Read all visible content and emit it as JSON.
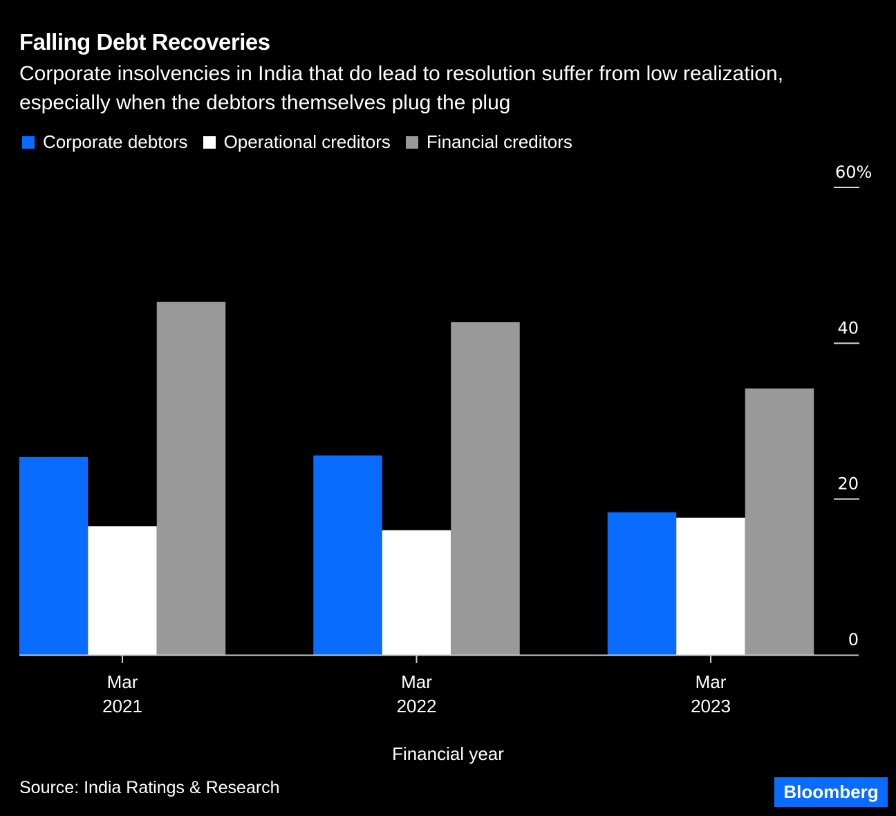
{
  "header": {
    "title": "Falling Debt Recoveries",
    "subtitle": "Corporate insolvencies in India that do lead to resolution suffer from low realization, especially when the debtors themselves plug the plug"
  },
  "footer": {
    "source": "Source: India Ratings & Research",
    "brand": "Bloomberg"
  },
  "chart_data": {
    "type": "bar",
    "title": "Falling Debt Recoveries",
    "subtitle": "Corporate insolvencies in India that do lead to resolution suffer from low realization, especially when the debtors themselves plug the plug",
    "categories": [
      {
        "line1": "Mar",
        "line2": "2021"
      },
      {
        "line1": "Mar",
        "line2": "2022"
      },
      {
        "line1": "Mar",
        "line2": "2023"
      }
    ],
    "series": [
      {
        "name": "Corporate debtors",
        "color": "#0a6cff",
        "values": [
          25.4,
          25.6,
          18.3
        ]
      },
      {
        "name": "Operational creditors",
        "color": "#ffffff",
        "values": [
          16.5,
          16.0,
          17.6
        ]
      },
      {
        "name": "Financial creditors",
        "color": "#999999",
        "values": [
          45.3,
          42.7,
          34.2
        ]
      }
    ],
    "xlabel": "Financial year",
    "ylabel": "",
    "ylim": [
      0,
      60
    ],
    "yticks": [
      {
        "value": 0,
        "label": "0"
      },
      {
        "value": 20,
        "label": "20"
      },
      {
        "value": 40,
        "label": "40"
      },
      {
        "value": 60,
        "label": "60%"
      }
    ],
    "y_axis_side": "right",
    "grid": false,
    "legend_position": "top-left"
  }
}
